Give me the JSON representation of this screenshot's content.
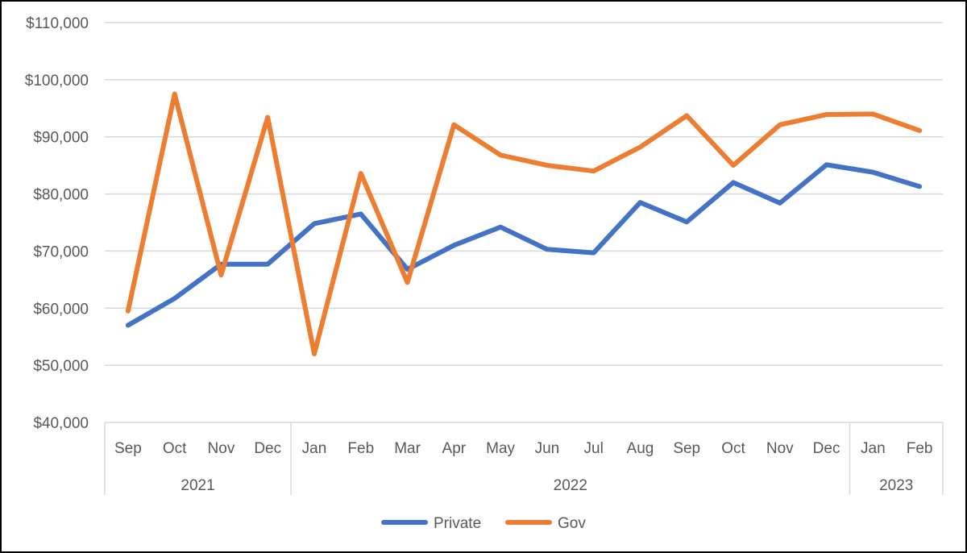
{
  "chart_data": {
    "type": "line",
    "title": "",
    "xlabel": "",
    "ylabel": "",
    "ylim": [
      40000,
      110000
    ],
    "y_ticks": [
      40000,
      50000,
      60000,
      70000,
      80000,
      90000,
      100000,
      110000
    ],
    "y_tick_labels": [
      "$40,000",
      "$50,000",
      "$60,000",
      "$70,000",
      "$80,000",
      "$90,000",
      "$100,000",
      "$110,000"
    ],
    "grid": true,
    "legend_position": "bottom",
    "categories": [
      "Sep",
      "Oct",
      "Nov",
      "Dec",
      "Jan",
      "Feb",
      "Mar",
      "Apr",
      "May",
      "Jun",
      "Jul",
      "Aug",
      "Sep",
      "Oct",
      "Nov",
      "Dec",
      "Jan",
      "Feb"
    ],
    "category_groups": [
      {
        "label": "2021",
        "count": 4
      },
      {
        "label": "2022",
        "count": 12
      },
      {
        "label": "2023",
        "count": 2
      }
    ],
    "series": [
      {
        "name": "Private",
        "color": "#4472C4",
        "values": [
          57000,
          61700,
          67700,
          67700,
          74800,
          76500,
          66800,
          71000,
          74200,
          70300,
          69700,
          78500,
          75100,
          82000,
          78400,
          85100,
          83800,
          81300
        ]
      },
      {
        "name": "Gov",
        "color": "#ED7D31",
        "values": [
          59500,
          97500,
          65800,
          93400,
          52000,
          83600,
          64500,
          92100,
          86800,
          85000,
          84000,
          88200,
          93700,
          85000,
          92100,
          93900,
          94000,
          91100
        ]
      }
    ]
  },
  "colors": {
    "grid": "#D9D9D9",
    "axis_text": "#595959",
    "frame": "#000000"
  }
}
